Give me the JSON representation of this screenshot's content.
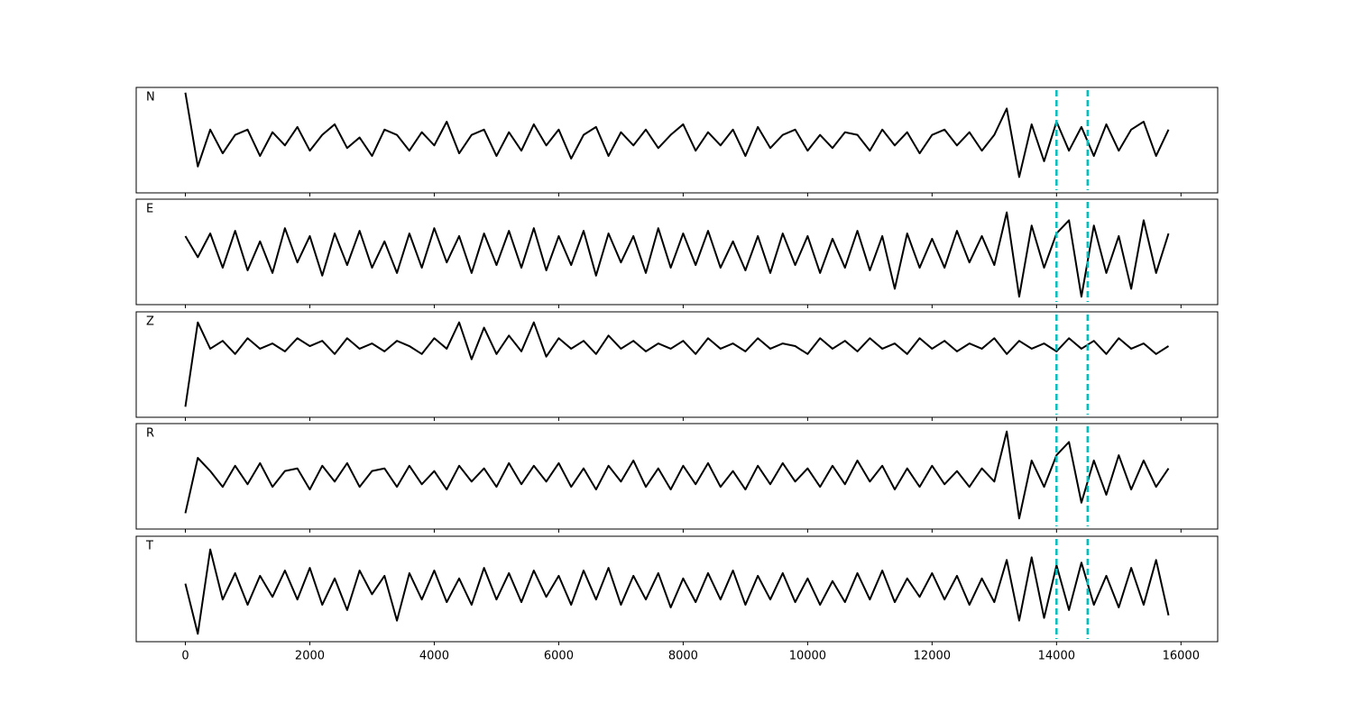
{
  "chart_data": [
    {
      "type": "line",
      "title": "N",
      "color": "#000000",
      "vline_color": "#00bfbf",
      "vlines": [
        14000,
        14500
      ],
      "xlim": [
        -790,
        16590
      ],
      "ylim": [
        -1,
        1
      ],
      "xticks": [
        0,
        2000,
        4000,
        6000,
        8000,
        10000,
        12000,
        14000,
        16000
      ],
      "x": [
        0,
        200,
        400,
        600,
        800,
        1000,
        1200,
        1400,
        1600,
        1800,
        2000,
        2200,
        2400,
        2600,
        2800,
        3000,
        3200,
        3400,
        3600,
        3800,
        4000,
        4200,
        4400,
        4600,
        4800,
        5000,
        5200,
        5400,
        5600,
        5800,
        6000,
        6200,
        6400,
        6600,
        6800,
        7000,
        7200,
        7400,
        7600,
        7800,
        8000,
        8200,
        8400,
        8600,
        8800,
        9000,
        9200,
        9400,
        9600,
        9800,
        10000,
        10200,
        10400,
        10600,
        10800,
        11000,
        11200,
        11400,
        11600,
        11800,
        12000,
        12200,
        12400,
        12600,
        12800,
        13000,
        13200,
        13400,
        13600,
        13800,
        14000,
        14200,
        14400,
        14600,
        14800,
        15000,
        15200,
        15400,
        15600,
        15800
      ],
      "values": [
        0.9,
        -0.5,
        0.2,
        -0.25,
        0.1,
        0.2,
        -0.3,
        0.15,
        -0.1,
        0.25,
        -0.2,
        0.1,
        0.3,
        -0.15,
        0.05,
        -0.3,
        0.2,
        0.1,
        -0.2,
        0.15,
        -0.1,
        0.35,
        -0.25,
        0.1,
        0.2,
        -0.3,
        0.15,
        -0.2,
        0.3,
        -0.1,
        0.2,
        -0.35,
        0.1,
        0.25,
        -0.3,
        0.15,
        -0.1,
        0.2,
        -0.15,
        0.1,
        0.3,
        -0.2,
        0.15,
        -0.1,
        0.2,
        -0.3,
        0.25,
        -0.15,
        0.1,
        0.2,
        -0.2,
        0.1,
        -0.15,
        0.15,
        0.1,
        -0.2,
        0.2,
        -0.1,
        0.15,
        -0.25,
        0.1,
        0.2,
        -0.1,
        0.15,
        -0.2,
        0.1,
        0.6,
        -0.7,
        0.3,
        -0.4,
        0.35,
        -0.2,
        0.25,
        -0.3,
        0.3,
        -0.2,
        0.2,
        0.35,
        -0.3,
        0.2
      ]
    },
    {
      "type": "line",
      "title": "E",
      "color": "#000000",
      "vline_color": "#00bfbf",
      "vlines": [
        14000,
        14500
      ],
      "xlim": [
        -790,
        16590
      ],
      "ylim": [
        -1,
        1
      ],
      "xticks": [
        0,
        2000,
        4000,
        6000,
        8000,
        10000,
        12000,
        14000,
        16000
      ],
      "x": [
        0,
        200,
        400,
        600,
        800,
        1000,
        1200,
        1400,
        1600,
        1800,
        2000,
        2200,
        2400,
        2600,
        2800,
        3000,
        3200,
        3400,
        3600,
        3800,
        4000,
        4200,
        4400,
        4600,
        4800,
        5000,
        5200,
        5400,
        5600,
        5800,
        6000,
        6200,
        6400,
        6600,
        6800,
        7000,
        7200,
        7400,
        7600,
        7800,
        8000,
        8200,
        8400,
        8600,
        8800,
        9000,
        9200,
        9400,
        9600,
        9800,
        10000,
        10200,
        10400,
        10600,
        10800,
        11000,
        11200,
        11400,
        11600,
        11800,
        12000,
        12200,
        12400,
        12600,
        12800,
        13000,
        13200,
        13400,
        13600,
        13800,
        14000,
        14200,
        14400,
        14600,
        14800,
        15000,
        15200,
        15400,
        15600,
        15800
      ],
      "values": [
        0.3,
        -0.1,
        0.35,
        -0.3,
        0.4,
        -0.35,
        0.2,
        -0.4,
        0.45,
        -0.2,
        0.3,
        -0.45,
        0.35,
        -0.25,
        0.4,
        -0.3,
        0.2,
        -0.4,
        0.35,
        -0.3,
        0.45,
        -0.2,
        0.3,
        -0.4,
        0.35,
        -0.25,
        0.4,
        -0.3,
        0.45,
        -0.35,
        0.3,
        -0.25,
        0.4,
        -0.45,
        0.35,
        -0.2,
        0.3,
        -0.4,
        0.45,
        -0.3,
        0.35,
        -0.25,
        0.4,
        -0.3,
        0.2,
        -0.35,
        0.3,
        -0.4,
        0.35,
        -0.25,
        0.3,
        -0.4,
        0.25,
        -0.3,
        0.4,
        -0.35,
        0.3,
        -0.7,
        0.35,
        -0.3,
        0.25,
        -0.3,
        0.4,
        -0.2,
        0.3,
        -0.25,
        0.75,
        -0.85,
        0.5,
        -0.3,
        0.35,
        0.6,
        -0.85,
        0.5,
        -0.4,
        0.3,
        -0.7,
        0.6,
        -0.4,
        0.35
      ]
    },
    {
      "type": "line",
      "title": "Z",
      "color": "#000000",
      "vline_color": "#00bfbf",
      "vlines": [
        14000,
        14500
      ],
      "xlim": [
        -790,
        16590
      ],
      "ylim": [
        -1,
        1
      ],
      "xticks": [
        0,
        2000,
        4000,
        6000,
        8000,
        10000,
        12000,
        14000,
        16000
      ],
      "x": [
        0,
        200,
        400,
        600,
        800,
        1000,
        1200,
        1400,
        1600,
        1800,
        2000,
        2200,
        2400,
        2600,
        2800,
        3000,
        3200,
        3400,
        3600,
        3800,
        4000,
        4200,
        4400,
        4600,
        4800,
        5000,
        5200,
        5400,
        5600,
        5800,
        6000,
        6200,
        6400,
        6600,
        6800,
        7000,
        7200,
        7400,
        7600,
        7800,
        8000,
        8200,
        8400,
        8600,
        8800,
        9000,
        9200,
        9400,
        9600,
        9800,
        10000,
        10200,
        10400,
        10600,
        10800,
        11000,
        11200,
        11400,
        11600,
        11800,
        12000,
        12200,
        12400,
        12600,
        12800,
        13000,
        13200,
        13400,
        13600,
        13800,
        14000,
        14200,
        14400,
        14600,
        14800,
        15000,
        15200,
        15400,
        15600,
        15800
      ],
      "values": [
        -0.8,
        0.8,
        0.3,
        0.45,
        0.2,
        0.5,
        0.3,
        0.4,
        0.25,
        0.5,
        0.35,
        0.45,
        0.2,
        0.5,
        0.3,
        0.4,
        0.25,
        0.45,
        0.35,
        0.2,
        0.5,
        0.3,
        0.8,
        0.1,
        0.7,
        0.2,
        0.55,
        0.25,
        0.8,
        0.15,
        0.5,
        0.3,
        0.45,
        0.2,
        0.55,
        0.3,
        0.45,
        0.25,
        0.4,
        0.3,
        0.45,
        0.2,
        0.5,
        0.3,
        0.4,
        0.25,
        0.5,
        0.3,
        0.4,
        0.35,
        0.2,
        0.5,
        0.3,
        0.45,
        0.25,
        0.5,
        0.3,
        0.4,
        0.2,
        0.5,
        0.3,
        0.45,
        0.25,
        0.4,
        0.3,
        0.5,
        0.2,
        0.45,
        0.3,
        0.4,
        0.25,
        0.5,
        0.3,
        0.45,
        0.2,
        0.5,
        0.3,
        0.4,
        0.2,
        0.35
      ]
    },
    {
      "type": "line",
      "title": "R",
      "color": "#000000",
      "vline_color": "#00bfbf",
      "vlines": [
        14000,
        14500
      ],
      "xlim": [
        -790,
        16590
      ],
      "ylim": [
        -1,
        1
      ],
      "xticks": [
        0,
        2000,
        4000,
        6000,
        8000,
        10000,
        12000,
        14000,
        16000
      ],
      "x": [
        0,
        200,
        400,
        600,
        800,
        1000,
        1200,
        1400,
        1600,
        1800,
        2000,
        2200,
        2400,
        2600,
        2800,
        3000,
        3200,
        3400,
        3600,
        3800,
        4000,
        4200,
        4400,
        4600,
        4800,
        5000,
        5200,
        5400,
        5600,
        5800,
        6000,
        6200,
        6400,
        6600,
        6800,
        7000,
        7200,
        7400,
        7600,
        7800,
        8000,
        8200,
        8400,
        8600,
        8800,
        9000,
        9200,
        9400,
        9600,
        9800,
        10000,
        10200,
        10400,
        10600,
        10800,
        11000,
        11200,
        11400,
        11600,
        11800,
        12000,
        12200,
        12400,
        12600,
        12800,
        13000,
        13200,
        13400,
        13600,
        13800,
        14000,
        14200,
        14400,
        14600,
        14800,
        15000,
        15200,
        15400,
        15600,
        15800
      ],
      "values": [
        -0.7,
        0.35,
        0.1,
        -0.2,
        0.2,
        -0.15,
        0.25,
        -0.2,
        0.1,
        0.15,
        -0.25,
        0.2,
        -0.1,
        0.25,
        -0.2,
        0.1,
        0.15,
        -0.2,
        0.2,
        -0.15,
        0.1,
        -0.25,
        0.2,
        -0.1,
        0.15,
        -0.2,
        0.25,
        -0.15,
        0.2,
        -0.1,
        0.25,
        -0.2,
        0.15,
        -0.25,
        0.2,
        -0.1,
        0.3,
        -0.2,
        0.15,
        -0.25,
        0.2,
        -0.15,
        0.25,
        -0.2,
        0.1,
        -0.25,
        0.2,
        -0.15,
        0.25,
        -0.1,
        0.15,
        -0.2,
        0.2,
        -0.15,
        0.3,
        -0.1,
        0.2,
        -0.25,
        0.15,
        -0.2,
        0.2,
        -0.15,
        0.1,
        -0.2,
        0.15,
        -0.1,
        0.85,
        -0.8,
        0.3,
        -0.2,
        0.4,
        0.65,
        -0.5,
        0.3,
        -0.35,
        0.4,
        -0.25,
        0.3,
        -0.2,
        0.15
      ]
    },
    {
      "type": "line",
      "title": "T",
      "color": "#000000",
      "vline_color": "#00bfbf",
      "vlines": [
        14000,
        14500
      ],
      "xlim": [
        -790,
        16590
      ],
      "ylim": [
        -1,
        1
      ],
      "xticks": [
        0,
        2000,
        4000,
        6000,
        8000,
        10000,
        12000,
        14000,
        16000
      ],
      "x": [
        0,
        200,
        400,
        600,
        800,
        1000,
        1200,
        1400,
        1600,
        1800,
        2000,
        2200,
        2400,
        2600,
        2800,
        3000,
        3200,
        3400,
        3600,
        3800,
        4000,
        4200,
        4400,
        4600,
        4800,
        5000,
        5200,
        5400,
        5600,
        5800,
        6000,
        6200,
        6400,
        6600,
        6800,
        7000,
        7200,
        7400,
        7600,
        7800,
        8000,
        8200,
        8400,
        8600,
        8800,
        9000,
        9200,
        9400,
        9600,
        9800,
        10000,
        10200,
        10400,
        10600,
        10800,
        11000,
        11200,
        11400,
        11600,
        11800,
        12000,
        12200,
        12400,
        12600,
        12800,
        13000,
        13200,
        13400,
        13600,
        13800,
        14000,
        14200,
        14400,
        14600,
        14800,
        15000,
        15200,
        15400,
        15600,
        15800
      ],
      "values": [
        0.1,
        -0.85,
        0.75,
        -0.2,
        0.3,
        -0.3,
        0.25,
        -0.15,
        0.35,
        -0.2,
        0.4,
        -0.3,
        0.2,
        -0.4,
        0.35,
        -0.1,
        0.25,
        -0.6,
        0.3,
        -0.2,
        0.35,
        -0.25,
        0.2,
        -0.3,
        0.4,
        -0.2,
        0.3,
        -0.25,
        0.35,
        -0.15,
        0.25,
        -0.3,
        0.35,
        -0.2,
        0.4,
        -0.3,
        0.25,
        -0.2,
        0.3,
        -0.35,
        0.2,
        -0.25,
        0.3,
        -0.2,
        0.35,
        -0.3,
        0.25,
        -0.2,
        0.3,
        -0.25,
        0.2,
        -0.3,
        0.15,
        -0.25,
        0.3,
        -0.2,
        0.35,
        -0.25,
        0.2,
        -0.15,
        0.3,
        -0.2,
        0.25,
        -0.3,
        0.2,
        -0.25,
        0.55,
        -0.6,
        0.6,
        -0.55,
        0.45,
        -0.4,
        0.5,
        -0.3,
        0.25,
        -0.35,
        0.4,
        -0.3,
        0.55,
        -0.5
      ]
    }
  ]
}
